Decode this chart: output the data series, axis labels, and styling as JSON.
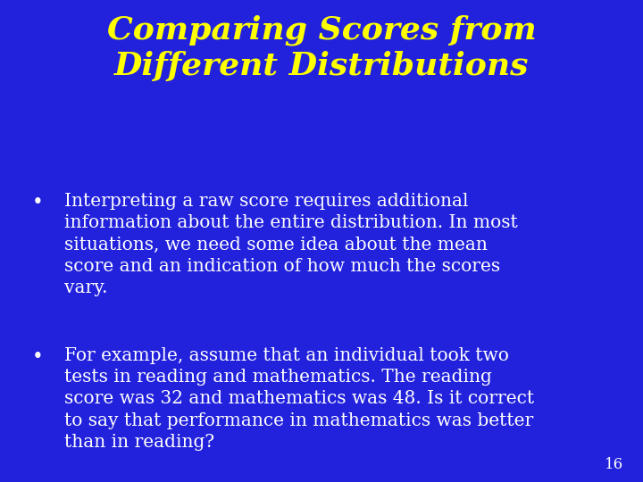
{
  "title_line1": "Comparing Scores from",
  "title_line2": "Different Distributions",
  "title_color": "#FFFF00",
  "title_fontsize": 26,
  "title_font": "DejaVu Serif",
  "body_color": "#FFFFFF",
  "body_fontsize": 14.5,
  "body_font": "DejaVu Serif",
  "background_color": "#2222DD",
  "slide_number": "16",
  "slide_number_color": "#FFFFFF",
  "slide_number_fontsize": 12,
  "bullet1_lines": [
    "Interpreting a raw score requires additional",
    "information about the entire distribution. In most",
    "situations, we need some idea about the mean",
    "score and an indication of how much the scores",
    "vary."
  ],
  "bullet2_lines": [
    "For example, assume that an individual took two",
    "tests in reading and mathematics. The reading",
    "score was 32 and mathematics was 48. Is it correct",
    "to say that performance in mathematics was better",
    "than in reading?"
  ]
}
